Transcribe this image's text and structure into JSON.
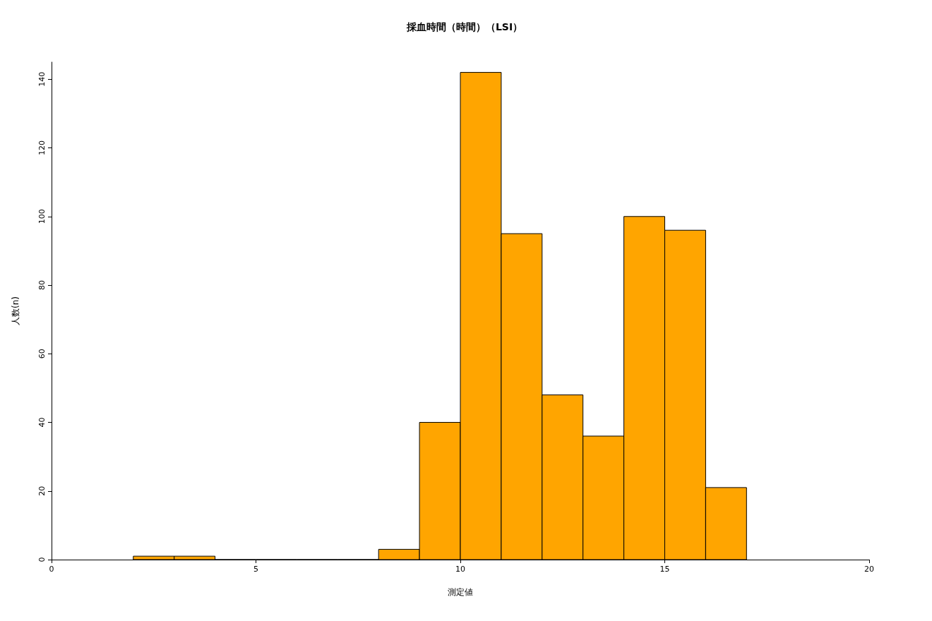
{
  "chart_data": {
    "type": "histogram",
    "title": "採血時間（時間）（LSI）",
    "xlabel": "測定値",
    "ylabel": "人数(n)",
    "bins": [
      2,
      3,
      4,
      5,
      6,
      7,
      8,
      9,
      10,
      11,
      12,
      13,
      14,
      15,
      16,
      17
    ],
    "values": [
      1,
      1,
      0,
      0,
      0,
      0,
      3,
      40,
      142,
      95,
      48,
      36,
      100,
      96,
      21
    ],
    "color": "#ffa500",
    "xlim": [
      0,
      20
    ],
    "xticks": [
      0,
      5,
      10,
      15,
      20
    ],
    "ylim": [
      0,
      145
    ],
    "yticks": [
      0,
      20,
      40,
      60,
      80,
      100,
      120,
      140
    ]
  }
}
